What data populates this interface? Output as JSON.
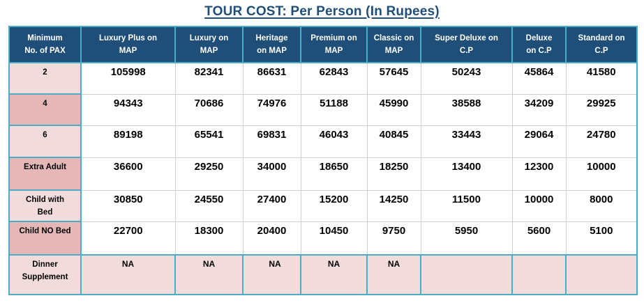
{
  "title": "TOUR COST: Per Person (In Rupees)",
  "colors": {
    "header_bg": "#1F4E79",
    "title_text": "#1F4E79",
    "border_accent": "#4BACC6",
    "row_pink_light": "#F2DCDB",
    "row_pink_dark": "#E5B8B7"
  },
  "table": {
    "columns": [
      "Minimum\nNo. of PAX",
      "Luxury Plus on\nMAP",
      "Luxury on\nMAP",
      "Heritage\non MAP",
      "Premium on\nMAP",
      "Classic on\nMAP",
      "Super Deluxe on\nC.P",
      "Deluxe\non C.P",
      "Standard on\nC.P"
    ],
    "rows": [
      {
        "label": "2",
        "shade": "light",
        "values": [
          "105998",
          "82341",
          "86631",
          "62843",
          "57645",
          "50243",
          "45864",
          "41580"
        ]
      },
      {
        "label": "4",
        "shade": "dark",
        "values": [
          "94343",
          "70686",
          "74976",
          "51188",
          "45990",
          "38588",
          "34209",
          "29925"
        ]
      },
      {
        "label": "6",
        "shade": "light",
        "values": [
          "89198",
          "65541",
          "69831",
          "46043",
          "40845",
          "33443",
          "29064",
          "24780"
        ]
      },
      {
        "label": "Extra Adult",
        "shade": "dark",
        "values": [
          "36600",
          "29250",
          "34000",
          "18650",
          "18250",
          "13400",
          "12300",
          "10000"
        ]
      },
      {
        "label": "Child with\nBed",
        "shade": "light",
        "values": [
          "30850",
          "24550",
          "27400",
          "15200",
          "14250",
          "11500",
          "10000",
          "8000"
        ]
      },
      {
        "label": "Child NO Bed",
        "shade": "dark",
        "values": [
          "22700",
          "18300",
          "20400",
          "10450",
          "9750",
          "5950",
          "5600",
          "5100"
        ]
      },
      {
        "label": "Dinner\nSupplement",
        "shade": "light",
        "pink_row": true,
        "left_align_cols": [
          2
        ],
        "values": [
          "NA",
          "NA",
          "NA",
          "NA",
          "NA",
          "",
          "",
          ""
        ]
      }
    ]
  }
}
